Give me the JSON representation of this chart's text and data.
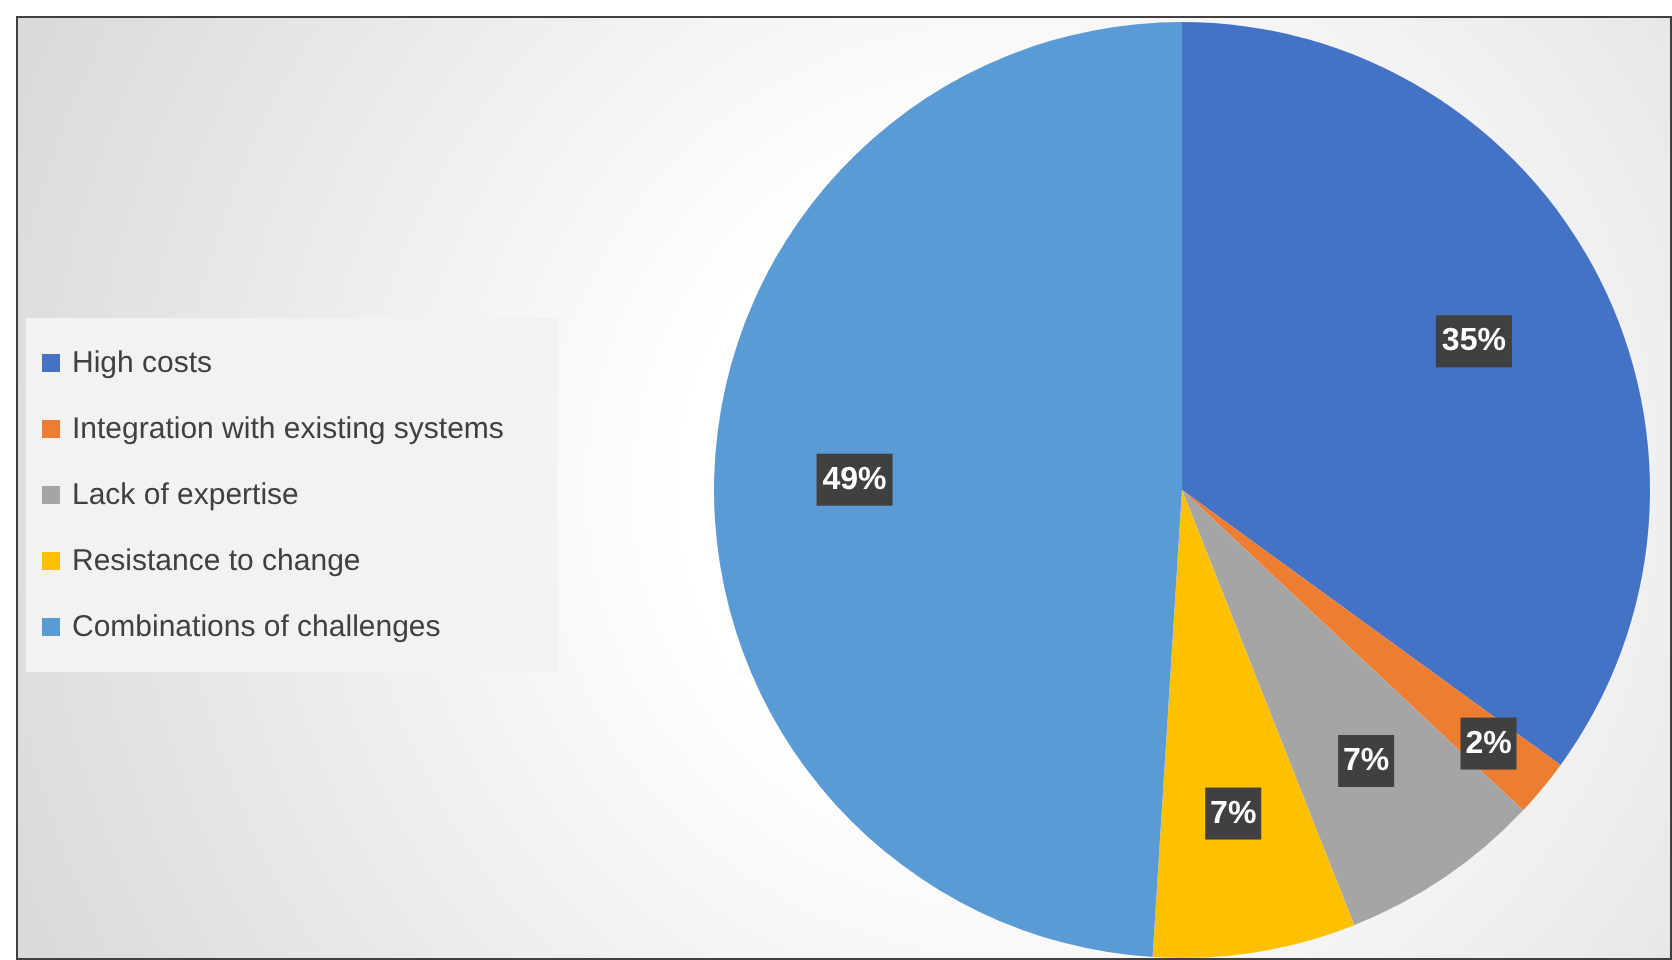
{
  "chart_data": {
    "type": "pie",
    "categories": [
      "High costs",
      "Integration with existing systems",
      "Lack of expertise",
      "Resistance to change",
      "Combinations of challenges"
    ],
    "values": [
      35,
      2,
      7,
      7,
      49
    ],
    "value_labels": [
      "35%",
      "2%",
      "7%",
      "7%",
      "49%"
    ],
    "colors": [
      "#4472c4",
      "#ed7d31",
      "#a5a5a5",
      "#ffc000",
      "#5b9bd5"
    ],
    "legend": "left"
  }
}
